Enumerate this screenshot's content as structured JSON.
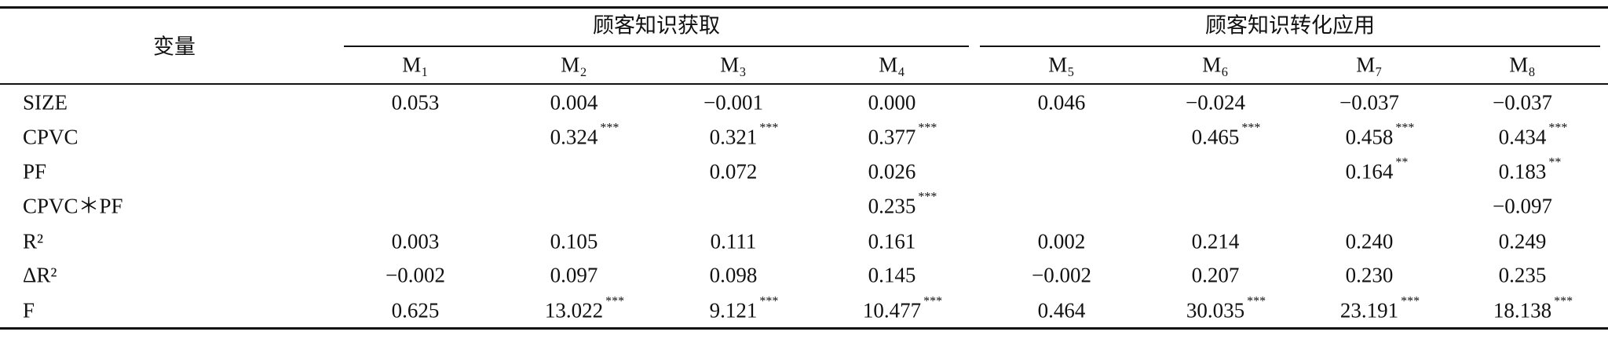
{
  "table": {
    "header": {
      "variable": "变量",
      "groups": [
        "顾客知识获取",
        "顾客知识转化应用"
      ],
      "models": [
        "M₁",
        "M₂",
        "M₃",
        "M₄",
        "M₅",
        "M₆",
        "M₇",
        "M₈"
      ]
    },
    "rows": [
      {
        "label": "SIZE",
        "cells": [
          {
            "value": "0.053"
          },
          {
            "value": "0.004"
          },
          {
            "value": "−0.001"
          },
          {
            "value": "0.000"
          },
          {
            "value": "0.046"
          },
          {
            "value": "−0.024"
          },
          {
            "value": "−0.037"
          },
          {
            "value": "−0.037"
          }
        ]
      },
      {
        "label": "CPVC",
        "cells": [
          null,
          {
            "value": "0.324",
            "sig": "***"
          },
          {
            "value": "0.321",
            "sig": "***"
          },
          {
            "value": "0.377",
            "sig": "***"
          },
          null,
          {
            "value": "0.465",
            "sig": "***"
          },
          {
            "value": "0.458",
            "sig": "***"
          },
          {
            "value": "0.434",
            "sig": "***"
          }
        ]
      },
      {
        "label": "PF",
        "cells": [
          null,
          null,
          {
            "value": "0.072"
          },
          {
            "value": "0.026"
          },
          null,
          null,
          {
            "value": "0.164",
            "sig": "**"
          },
          {
            "value": "0.183",
            "sig": "**"
          }
        ]
      },
      {
        "label": "CPVC＊PF",
        "cells": [
          null,
          null,
          null,
          {
            "value": "0.235",
            "sig": "***"
          },
          null,
          null,
          null,
          {
            "value": "−0.097"
          }
        ]
      },
      {
        "label": "R²",
        "cells": [
          {
            "value": "0.003"
          },
          {
            "value": "0.105"
          },
          {
            "value": "0.111"
          },
          {
            "value": "0.161"
          },
          {
            "value": "0.002"
          },
          {
            "value": "0.214"
          },
          {
            "value": "0.240"
          },
          {
            "value": "0.249"
          }
        ]
      },
      {
        "label": "ΔR²",
        "cells": [
          {
            "value": "−0.002"
          },
          {
            "value": "0.097"
          },
          {
            "value": "0.098"
          },
          {
            "value": "0.145"
          },
          {
            "value": "−0.002"
          },
          {
            "value": "0.207"
          },
          {
            "value": "0.230"
          },
          {
            "value": "0.235"
          }
        ]
      },
      {
        "label": "F",
        "cells": [
          {
            "value": "0.625"
          },
          {
            "value": "13.022",
            "sig": "***"
          },
          {
            "value": "9.121",
            "sig": "***"
          },
          {
            "value": "10.477",
            "sig": "***"
          },
          {
            "value": "0.464"
          },
          {
            "value": "30.035",
            "sig": "***"
          },
          {
            "value": "23.191",
            "sig": "***"
          },
          {
            "value": "18.138",
            "sig": "***"
          }
        ]
      }
    ]
  }
}
